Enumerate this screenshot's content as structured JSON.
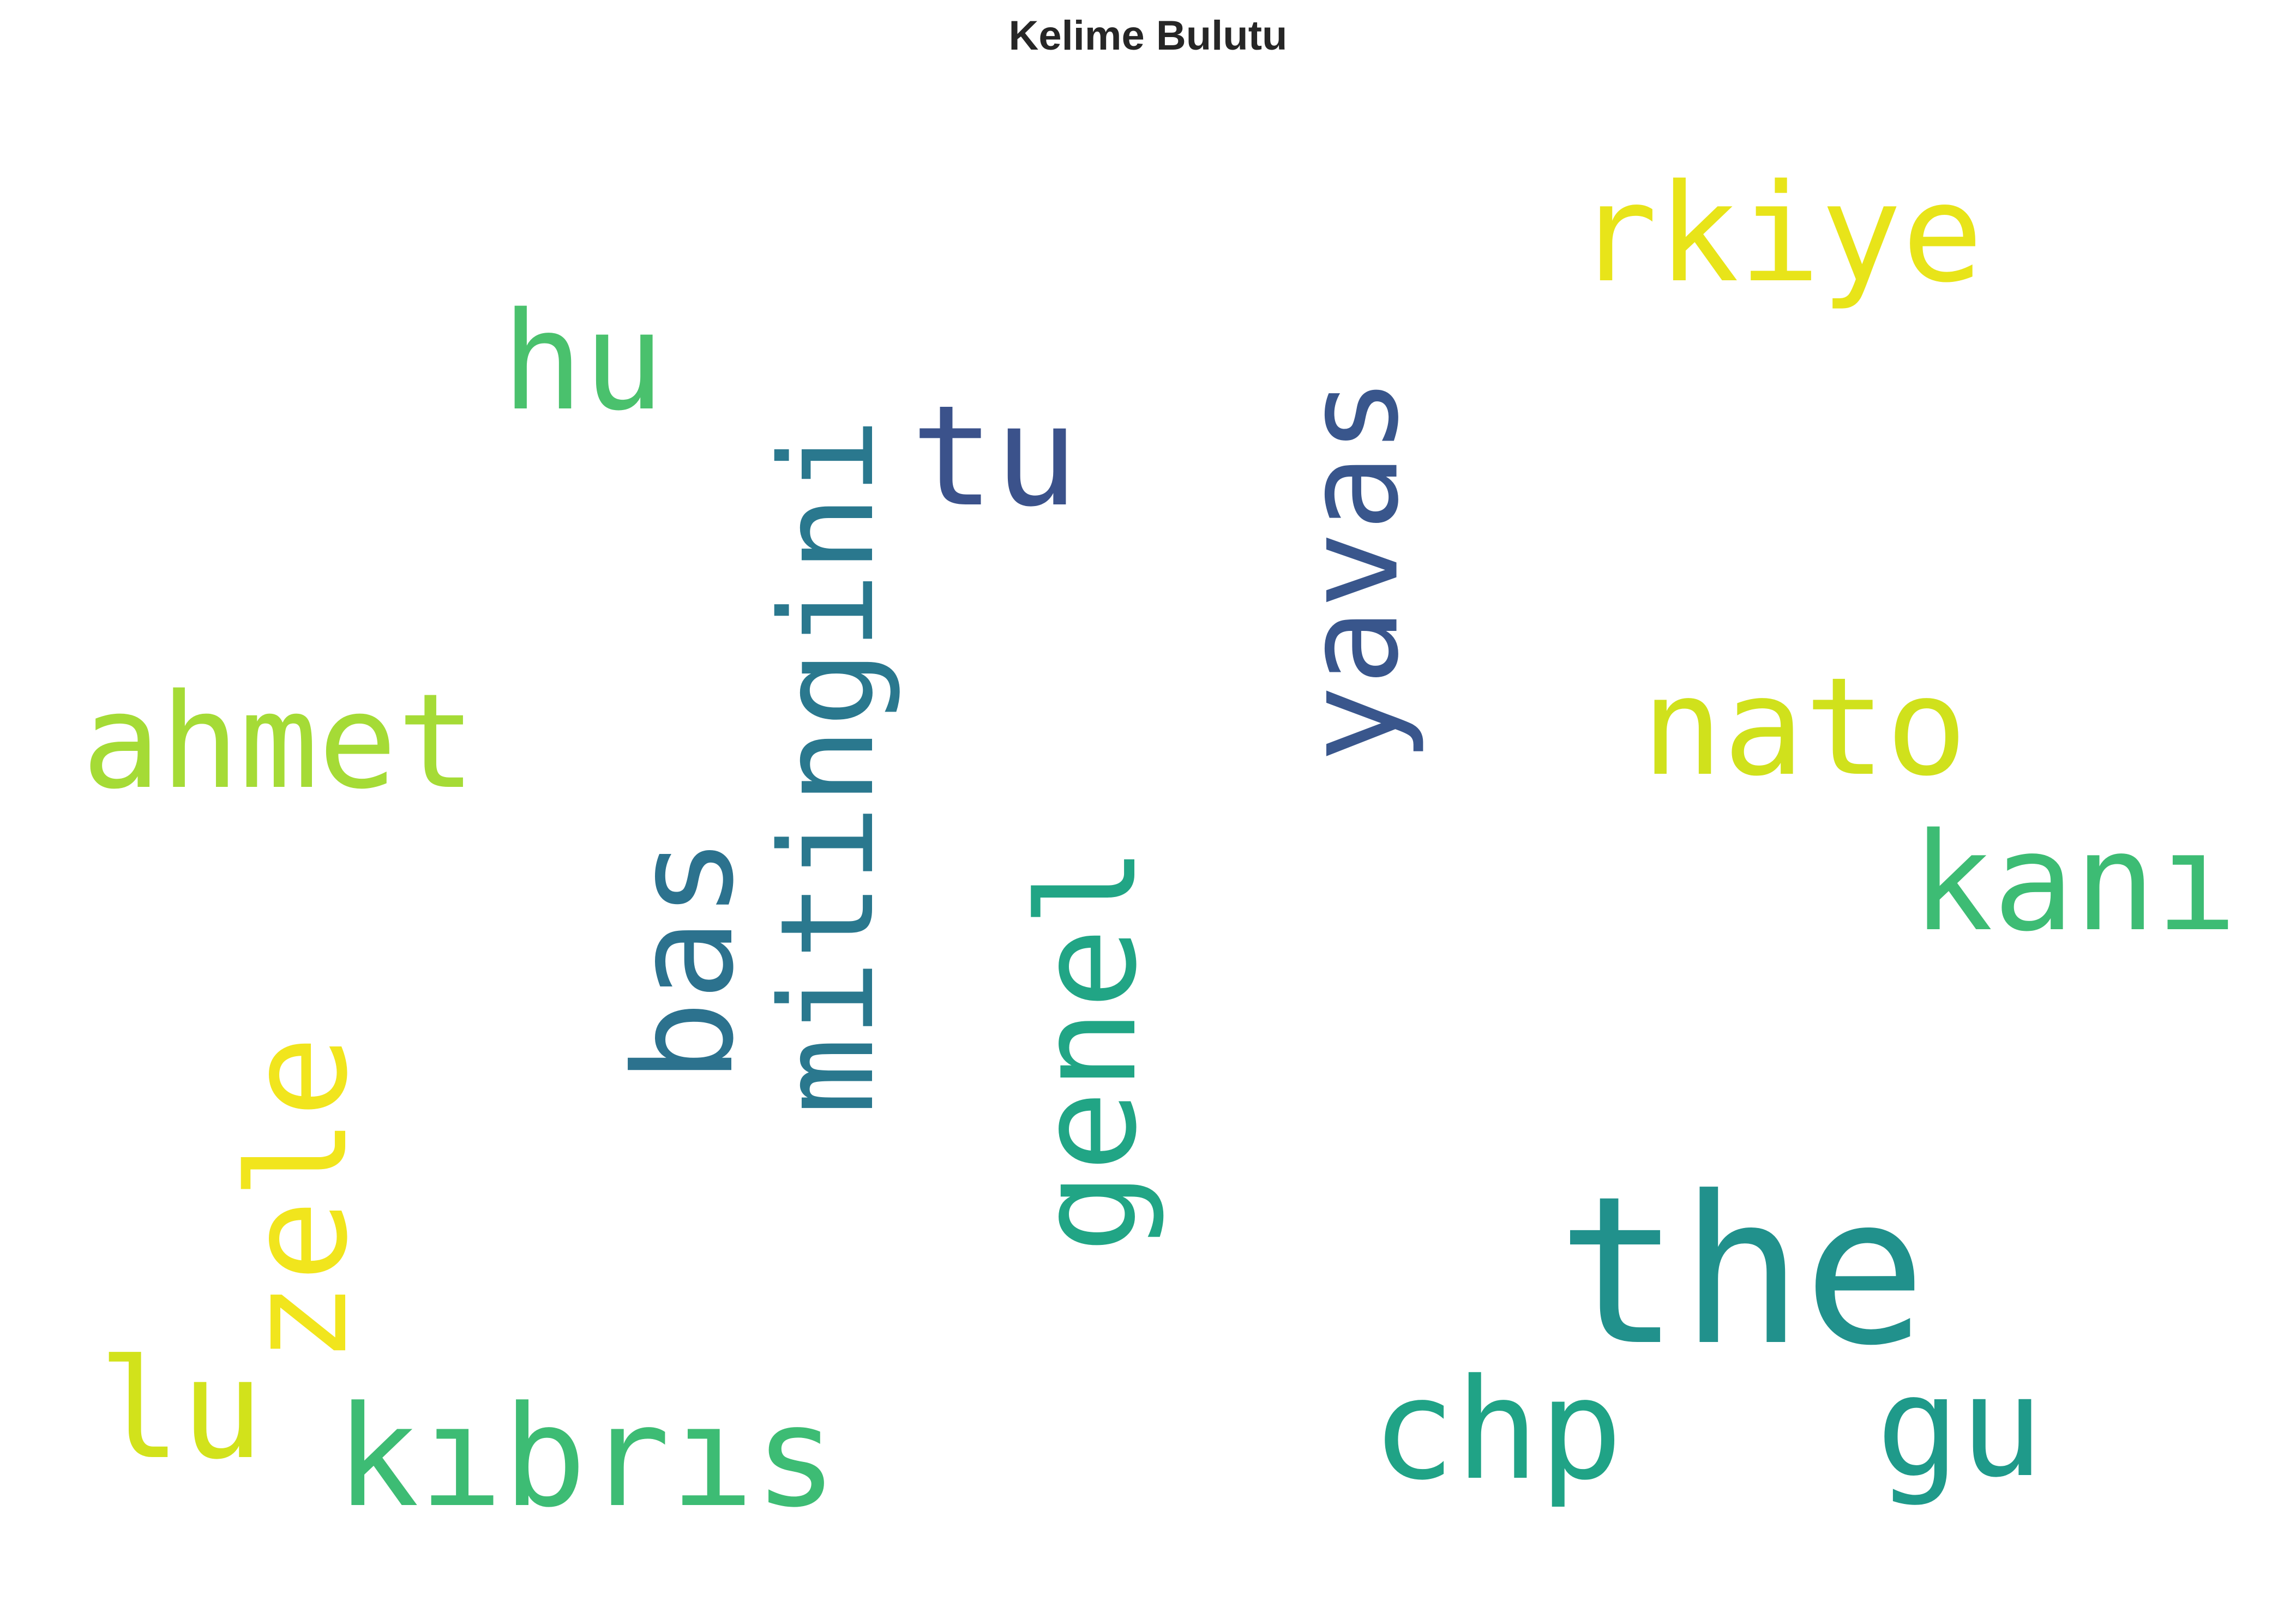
{
  "title": "Kelime Bulutu",
  "words": [
    {
      "id": "the",
      "text": "the",
      "color": "#21918c",
      "orientation": "horizontal"
    },
    {
      "id": "yavas",
      "text": "yavas",
      "color": "#39568c",
      "orientation": "vertical"
    },
    {
      "id": "mitingini",
      "text": "mitingini",
      "color": "#2a788e",
      "orientation": "vertical"
    },
    {
      "id": "kibris",
      "text": "kıbrıs",
      "color": "#3dbc74",
      "orientation": "horizontal"
    },
    {
      "id": "chp",
      "text": "chp",
      "color": "#20a386",
      "orientation": "horizontal"
    },
    {
      "id": "genel",
      "text": "genel",
      "color": "#21a585",
      "orientation": "vertical"
    },
    {
      "id": "ahmet",
      "text": "ahmet",
      "color": "#a5db36",
      "orientation": "horizontal"
    },
    {
      "id": "kani",
      "text": "kanı",
      "color": "#3dbc74",
      "orientation": "horizontal"
    },
    {
      "id": "nato",
      "text": "nato",
      "color": "#d0e11c",
      "orientation": "horizontal"
    },
    {
      "id": "rkiye",
      "text": "rkiye",
      "color": "#e8e419",
      "orientation": "horizontal"
    },
    {
      "id": "tu",
      "text": "tu",
      "color": "#3b528b",
      "orientation": "horizontal"
    },
    {
      "id": "bas",
      "text": "bas",
      "color": "#2c728e",
      "orientation": "vertical"
    },
    {
      "id": "zele",
      "text": "zele",
      "color": "#f1e51d",
      "orientation": "vertical"
    },
    {
      "id": "hu",
      "text": "hu",
      "color": "#4ac16d",
      "orientation": "horizontal"
    },
    {
      "id": "lu",
      "text": "lu",
      "color": "#d2e21b",
      "orientation": "horizontal"
    },
    {
      "id": "gu",
      "text": "gu",
      "color": "#1f9a8a",
      "orientation": "horizontal"
    }
  ]
}
